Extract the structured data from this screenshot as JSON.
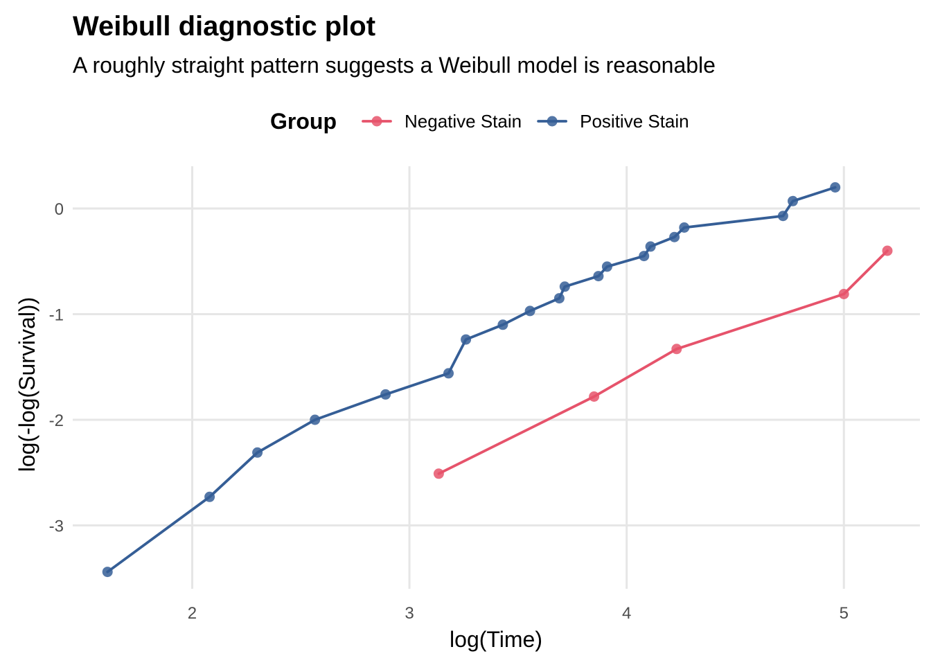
{
  "chart_data": {
    "type": "line",
    "title": "Weibull diagnostic plot",
    "subtitle": "A roughly straight pattern suggests a Weibull model is reasonable",
    "xlabel": "log(Time)",
    "ylabel": "log(-log(Survival))",
    "xlim": [
      1.45,
      5.35
    ],
    "ylim": [
      -3.6,
      0.4
    ],
    "xticks": [
      2,
      3,
      4,
      5
    ],
    "yticks": [
      0,
      -1,
      -2,
      -3
    ],
    "xtick_labels": [
      "2",
      "3",
      "4",
      "5"
    ],
    "ytick_labels": [
      "0",
      "-1",
      "-2",
      "-3"
    ],
    "grid": true,
    "legend": {
      "title": "Group",
      "position": "top"
    },
    "series": [
      {
        "name": "Negative Stain",
        "color": "#E6536B",
        "x": [
          3.135,
          3.85,
          4.23,
          5.0,
          5.2
        ],
        "y": [
          -2.51,
          -1.78,
          -1.33,
          -0.81,
          -0.4
        ]
      },
      {
        "name": "Positive Stain",
        "color": "#355E96",
        "x": [
          1.61,
          2.08,
          2.3,
          2.565,
          2.89,
          3.18,
          3.26,
          3.43,
          3.555,
          3.69,
          3.715,
          3.87,
          3.91,
          4.08,
          4.11,
          4.22,
          4.265,
          4.72,
          4.765,
          4.96
        ],
        "y": [
          -3.44,
          -2.73,
          -2.31,
          -2.0,
          -1.76,
          -1.56,
          -1.24,
          -1.1,
          -0.97,
          -0.85,
          -0.74,
          -0.64,
          -0.55,
          -0.45,
          -0.36,
          -0.27,
          -0.18,
          -0.07,
          0.07,
          0.2
        ]
      }
    ]
  }
}
